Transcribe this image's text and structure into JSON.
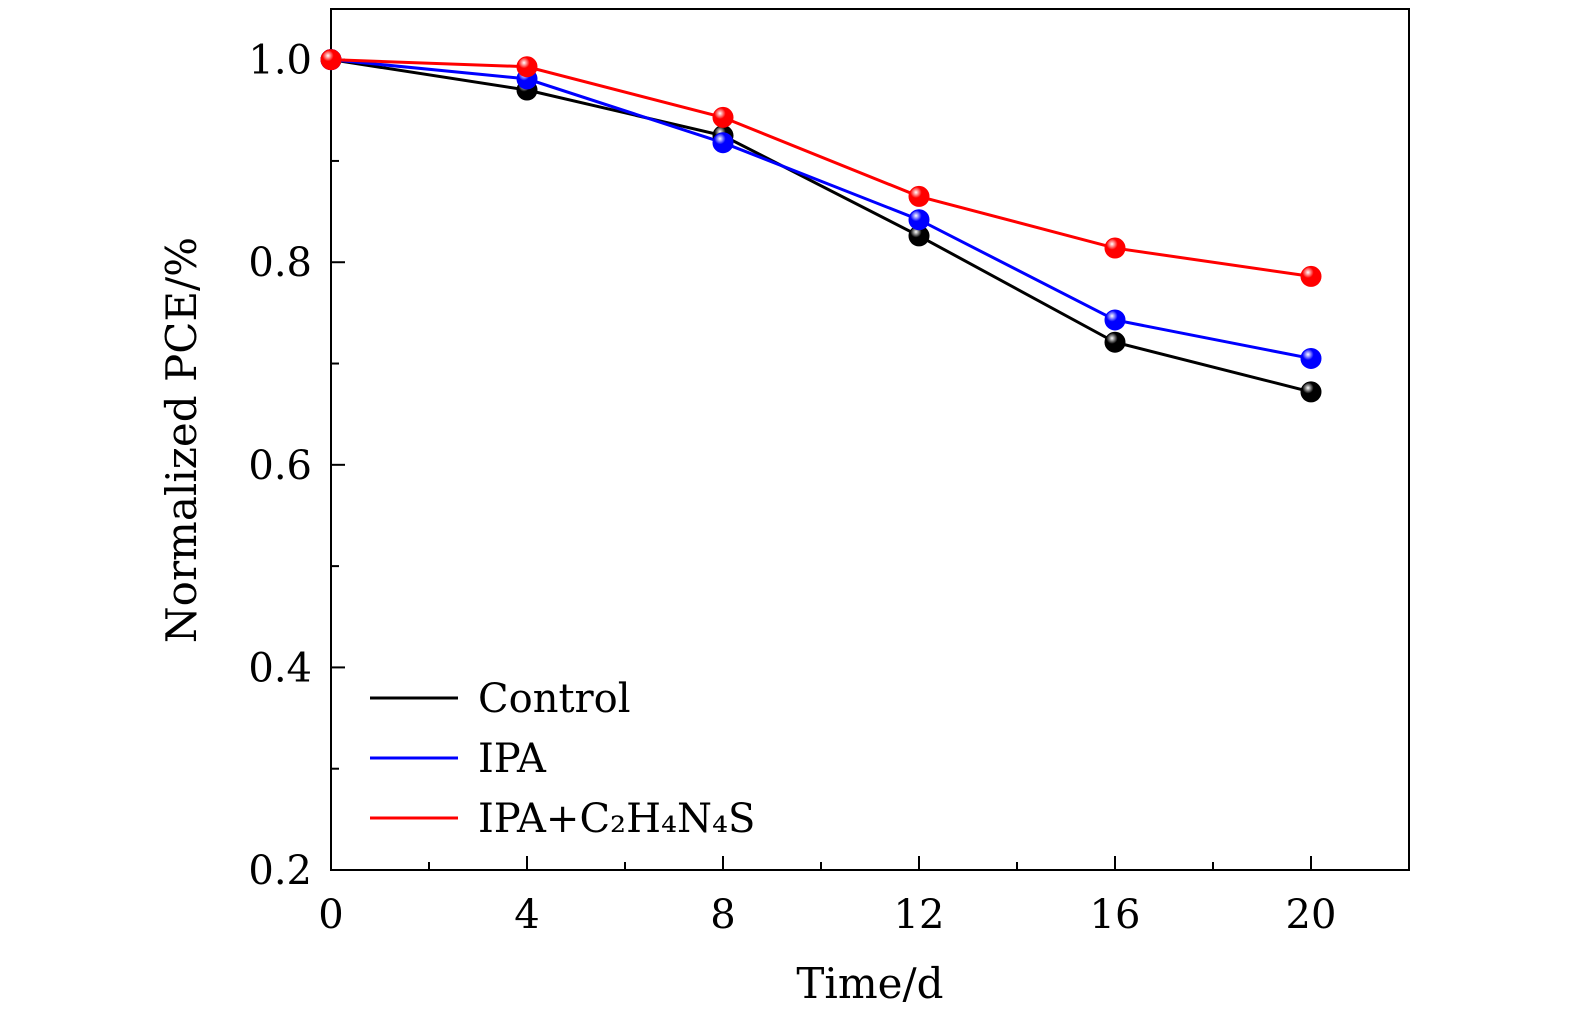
{
  "chart_data": {
    "type": "line",
    "title": "",
    "xlabel": "Time/d",
    "ylabel": "Normalized PCE/%",
    "x": [
      0,
      4,
      8,
      12,
      16,
      20
    ],
    "xlim": [
      0,
      22
    ],
    "ylim": [
      0.2,
      1.05
    ],
    "xticks": [
      "0",
      "4",
      "8",
      "12",
      "16",
      "20"
    ],
    "yticks": [
      "0.2",
      "0.4",
      "0.6",
      "0.8",
      "1.0"
    ],
    "grid": false,
    "legend_position": "bottom-left",
    "series": [
      {
        "name": "Control",
        "color": "#000000",
        "values": [
          1.0,
          0.97,
          0.925,
          0.826,
          0.721,
          0.672
        ]
      },
      {
        "name": "IPA",
        "color": "#0000ff",
        "values": [
          1.0,
          0.981,
          0.918,
          0.842,
          0.743,
          0.705
        ]
      },
      {
        "name": "IPA+C₂H₄N₄S",
        "color": "#ff0000",
        "values": [
          1.0,
          0.993,
          0.943,
          0.865,
          0.814,
          0.786
        ]
      }
    ]
  }
}
